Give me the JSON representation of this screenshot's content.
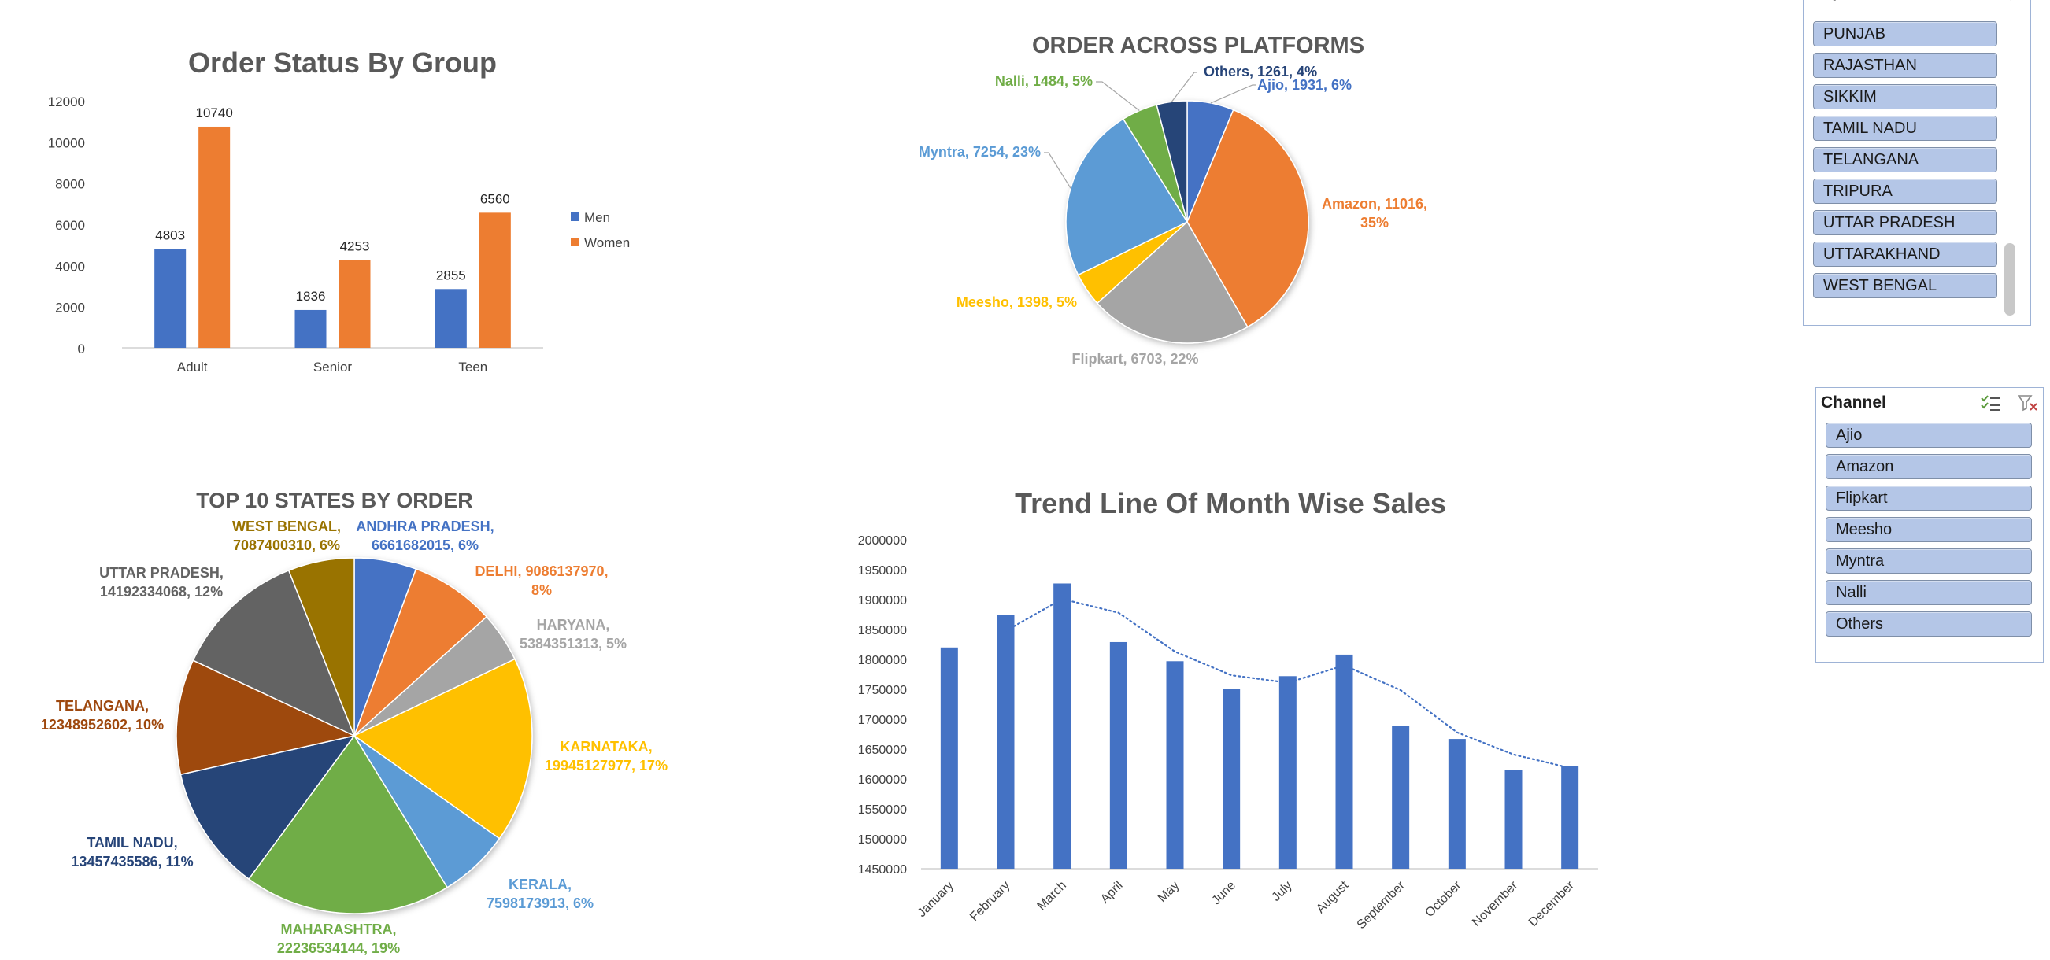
{
  "charts": {
    "order_status": {
      "type": "bar",
      "title": "Order Status By Group",
      "categories": [
        "Adult",
        "Senior",
        "Teen"
      ],
      "series": [
        {
          "name": "Men",
          "values": [
            4803,
            1836,
            2855
          ],
          "color": "#4472c4"
        },
        {
          "name": "Women",
          "values": [
            10740,
            4253,
            6560
          ],
          "color": "#ed7d31"
        }
      ],
      "yticks": [
        "0",
        "2000",
        "4000",
        "6000",
        "8000",
        "10000",
        "12000"
      ],
      "ylim": [
        0,
        12000
      ]
    },
    "platforms": {
      "type": "pie",
      "title": "ORDER ACROSS PLATFORMS",
      "slices": [
        {
          "label": "Ajio",
          "value": 1931,
          "pct": "6%",
          "color": "#4472c4",
          "text": "Ajio, 1931, 6%"
        },
        {
          "label": "Amazon",
          "value": 11016,
          "pct": "35%",
          "color": "#ed7d31",
          "text1": "Amazon, 11016,",
          "text2": "35%"
        },
        {
          "label": "Flipkart",
          "value": 6703,
          "pct": "22%",
          "color": "#a5a5a5",
          "text": "Flipkart, 6703, 22%"
        },
        {
          "label": "Meesho",
          "value": 1398,
          "pct": "5%",
          "color": "#ffc000",
          "text": "Meesho, 1398, 5%"
        },
        {
          "label": "Myntra",
          "value": 7254,
          "pct": "23%",
          "color": "#5b9bd5",
          "text": "Myntra, 7254, 23%"
        },
        {
          "label": "Nalli",
          "value": 1484,
          "pct": "5%",
          "color": "#70ad47",
          "text": "Nalli, 1484, 5%"
        },
        {
          "label": "Others",
          "value": 1261,
          "pct": "4%",
          "color": "#264478",
          "text": "Others, 1261, 4%"
        }
      ]
    },
    "states": {
      "type": "pie",
      "title": "TOP 10 STATES BY ORDER",
      "slices": [
        {
          "label": "ANDHRA PRADESH",
          "value": 6661682015,
          "color": "#4472c4",
          "text1": "ANDHRA PRADESH,",
          "text2": "6661682015, 6%"
        },
        {
          "label": "DELHI",
          "value": 9086137970,
          "color": "#ed7d31",
          "text1": "DELHI, 9086137970,",
          "text2": "8%"
        },
        {
          "label": "HARYANA",
          "value": 5384351313,
          "color": "#a5a5a5",
          "text1": "HARYANA,",
          "text2": "5384351313, 5%"
        },
        {
          "label": "KARNATAKA",
          "value": 19945127977,
          "color": "#ffc000",
          "text1": "KARNATAKA,",
          "text2": "19945127977, 17%"
        },
        {
          "label": "KERALA",
          "value": 7598173913,
          "color": "#5b9bd5",
          "text1": "KERALA,",
          "text2": "7598173913, 6%"
        },
        {
          "label": "MAHARASHTRA",
          "value": 22236534144,
          "color": "#70ad47",
          "text1": "MAHARASHTRA,",
          "text2": "22236534144, 19%"
        },
        {
          "label": "TAMIL NADU",
          "value": 13457435586,
          "color": "#264478",
          "text1": "TAMIL NADU,",
          "text2": "13457435586, 11%"
        },
        {
          "label": "TELANGANA",
          "value": 12348952602,
          "color": "#9e480e",
          "text1": "TELANGANA,",
          "text2": "12348952602, 10%"
        },
        {
          "label": "UTTAR PRADESH",
          "value": 14192334068,
          "color": "#636363",
          "text1": "UTTAR PRADESH,",
          "text2": "14192334068, 12%"
        },
        {
          "label": "WEST BENGAL",
          "value": 7087400310,
          "color": "#997300",
          "text1": "WEST BENGAL,",
          "text2": "7087400310, 6%"
        }
      ]
    },
    "trend": {
      "type": "bar",
      "title": "Trend Line Of Month Wise Sales",
      "categories": [
        "January",
        "February",
        "March",
        "April",
        "May",
        "June",
        "July",
        "August",
        "September",
        "October",
        "November",
        "December"
      ],
      "values": [
        1820000,
        1875000,
        1927000,
        1829000,
        1797000,
        1750000,
        1772000,
        1808000,
        1689000,
        1667000,
        1615000,
        1622000
      ],
      "trendline": "dotted moving average",
      "color": "#4472c4",
      "ylim": [
        1450000,
        2000000
      ],
      "yticks": [
        "1450000",
        "1500000",
        "1550000",
        "1600000",
        "1650000",
        "1700000",
        "1750000",
        "1800000",
        "1850000",
        "1900000",
        "1950000",
        "2000000"
      ]
    }
  },
  "chart_data": [
    {
      "type": "bar",
      "title": "Order Status By Group",
      "categories": [
        "Adult",
        "Senior",
        "Teen"
      ],
      "series": [
        {
          "name": "Men",
          "values": [
            4803,
            1836,
            2855
          ]
        },
        {
          "name": "Women",
          "values": [
            10740,
            4253,
            6560
          ]
        }
      ],
      "ylim": [
        0,
        12000
      ],
      "legend": "right"
    },
    {
      "type": "pie",
      "title": "ORDER ACROSS PLATFORMS",
      "categories": [
        "Ajio",
        "Amazon",
        "Flipkart",
        "Meesho",
        "Myntra",
        "Nalli",
        "Others"
      ],
      "values": [
        1931,
        11016,
        6703,
        1398,
        7254,
        1484,
        1261
      ]
    },
    {
      "type": "pie",
      "title": "TOP 10 STATES BY ORDER",
      "categories": [
        "ANDHRA PRADESH",
        "DELHI",
        "HARYANA",
        "KARNATAKA",
        "KERALA",
        "MAHARASHTRA",
        "TAMIL NADU",
        "TELANGANA",
        "UTTAR PRADESH",
        "WEST BENGAL"
      ],
      "values": [
        6661682015,
        9086137970,
        5384351313,
        19945127977,
        7598173913,
        22236534144,
        13457435586,
        12348952602,
        14192334068,
        7087400310
      ]
    },
    {
      "type": "bar",
      "title": "Trend Line Of Month Wise Sales",
      "categories": [
        "January",
        "February",
        "March",
        "April",
        "May",
        "June",
        "July",
        "August",
        "September",
        "October",
        "November",
        "December"
      ],
      "values": [
        1820000,
        1875000,
        1927000,
        1829000,
        1797000,
        1750000,
        1772000,
        1808000,
        1689000,
        1667000,
        1615000,
        1622000
      ],
      "ylim": [
        1450000,
        2000000
      ],
      "grid": false
    }
  ],
  "slicers": {
    "ship_state": {
      "title": "ship-state",
      "items": [
        "PUNJAB",
        "RAJASTHAN",
        "SIKKIM",
        "TAMIL NADU",
        "TELANGANA",
        "TRIPURA",
        "UTTAR  PRADESH",
        "UTTARAKHAND",
        "WEST BENGAL"
      ]
    },
    "channel": {
      "title": "Channel",
      "items": [
        "Ajio",
        "Amazon",
        "Flipkart",
        "Meesho",
        "Myntra",
        "Nalli",
        "Others"
      ]
    }
  },
  "icons": {
    "multi_select": "multi-select-icon",
    "clear_filter": "clear-filter-icon"
  }
}
